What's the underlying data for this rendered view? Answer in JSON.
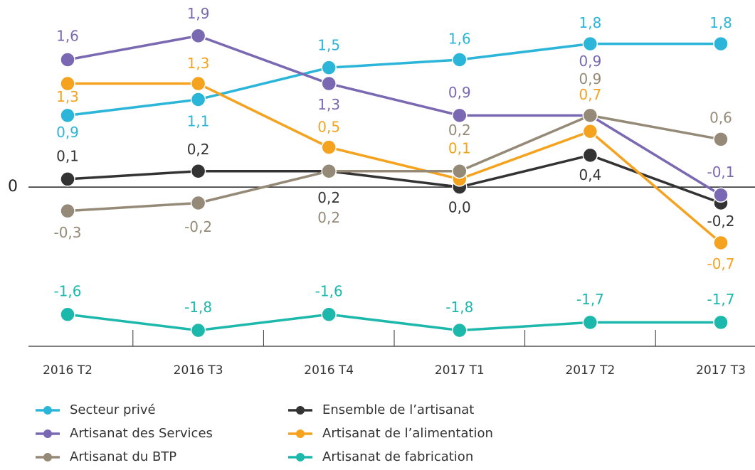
{
  "chart_data": {
    "type": "line",
    "categories": [
      "2016 T2",
      "2016 T3",
      "2016 T4",
      "2017 T1",
      "2017 T2",
      "2017 T3"
    ],
    "ylim": [
      -2,
      2.1
    ],
    "yticks": [
      0
    ],
    "series": [
      {
        "name": "Secteur privé",
        "color": "#2bb5d8",
        "values": [
          0.9,
          1.1,
          1.5,
          1.6,
          1.8,
          1.8
        ],
        "value_labels": [
          "0,9",
          "1,1",
          "1,5",
          "1,6",
          "1,8",
          "1,8"
        ]
      },
      {
        "name": "Ensemble de l’artisanat",
        "color": "#333333",
        "values": [
          0.1,
          0.2,
          0.2,
          0.0,
          0.4,
          -0.2
        ],
        "value_labels": [
          "0,1",
          "0,2",
          "0,2",
          "0,0",
          "0,4",
          "-0,2"
        ]
      },
      {
        "name": "Artisanat des Services",
        "color": "#7a68b2",
        "values": [
          1.6,
          1.9,
          1.3,
          0.9,
          0.9,
          -0.1
        ],
        "value_labels": [
          "1,6",
          "1,9",
          "1,3",
          "0,9",
          "0,9",
          "-0,1"
        ]
      },
      {
        "name": "Artisanat de l’alimentation",
        "color": "#f5a31f",
        "values": [
          1.3,
          1.3,
          0.5,
          0.1,
          0.7,
          -0.7
        ],
        "value_labels": [
          "1,3",
          "1,3",
          "0,5",
          "0,1",
          "0,7",
          "-0,7"
        ]
      },
      {
        "name": "Artisanat du BTP",
        "color": "#958a77",
        "values": [
          -0.3,
          -0.2,
          0.2,
          0.2,
          0.9,
          0.6
        ],
        "value_labels": [
          "-0,3",
          "-0,2",
          "0,2",
          "0,2",
          "0,9",
          "0,6"
        ]
      },
      {
        "name": "Artisanat de fabrication",
        "color": "#1cb8ab",
        "values": [
          -1.6,
          -1.8,
          -1.6,
          -1.8,
          -1.7,
          -1.7
        ],
        "value_labels": [
          "-1,6",
          "-1,8",
          "-1,6",
          "-1,8",
          "-1,7",
          "-1,7"
        ]
      }
    ]
  }
}
